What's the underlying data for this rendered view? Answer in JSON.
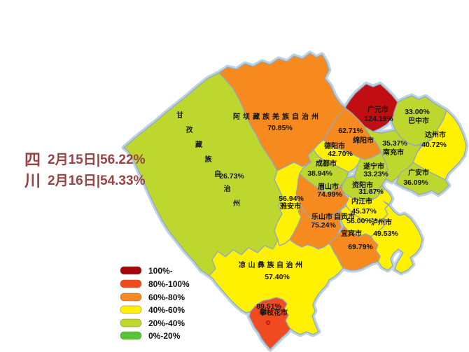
{
  "title": {
    "chars": [
      "四",
      "川"
    ],
    "line1": "2月15日|56.22%",
    "line2": "2月16日|54.33%",
    "text_color": "#964444"
  },
  "legend": {
    "items": [
      {
        "label": "100%-",
        "color": "#A8060E"
      },
      {
        "label": "80%-100%",
        "color": "#F04A21"
      },
      {
        "label": "60%-80%",
        "color": "#F68A1E"
      },
      {
        "label": "40%-60%",
        "color": "#FFF100"
      },
      {
        "label": "20%-40%",
        "color": "#BDD72F"
      },
      {
        "label": "0%-20%",
        "color": "#52C636"
      }
    ]
  },
  "map": {
    "border_halo_color": "#BDD3E2",
    "border_line_color": "#93A9BD",
    "regions": [
      {
        "name": "甘孜藏族自治州",
        "value": "26.73%",
        "color": "#BDD72F"
      },
      {
        "name": "阿坝藏族羌族自治州",
        "value": "70.85%",
        "color": "#F68A1E"
      },
      {
        "name": "广元市",
        "value": "124.19%",
        "color": "#C20E12"
      },
      {
        "name": "绵阳市",
        "value": "62.71%",
        "color": "#F68A1E"
      },
      {
        "name": "巴中市",
        "value": "33.00%",
        "color": "#BDD72F"
      },
      {
        "name": "达州市",
        "value": "40.72%",
        "color": "#FFF100"
      },
      {
        "name": "南充市",
        "value": "35.37%",
        "color": "#BDD72F"
      },
      {
        "name": "德阳市",
        "value": "42.70%",
        "color": "#FFF100"
      },
      {
        "name": "成都市",
        "value": "38.94%",
        "color": "#BDD72F"
      },
      {
        "name": "遂宁市",
        "value": "33.23%",
        "color": "#BDD72F"
      },
      {
        "name": "广安市",
        "value": "36.09%",
        "color": "#BDD72F"
      },
      {
        "name": "资阳市",
        "value": "31.87%",
        "color": "#BDD72F"
      },
      {
        "name": "内江市",
        "value": "45.37%",
        "color": "#FFF100"
      },
      {
        "name": "眉山市",
        "value": "74.99%",
        "color": "#F68A1E"
      },
      {
        "name": "雅安市",
        "value": "56.94%",
        "color": "#FFF100"
      },
      {
        "name": "乐山市",
        "value": "75.24%",
        "color": "#F68A1E"
      },
      {
        "name": "自贡市",
        "value": "56.00%",
        "color": "#FFF100"
      },
      {
        "name": "泸州市",
        "value": "49.53%",
        "color": "#FFF100"
      },
      {
        "name": "宜宾市",
        "value": "69.79%",
        "color": "#F68A1E"
      },
      {
        "name": "凉山彝族自治州",
        "value": "57.40%",
        "color": "#FFF100"
      },
      {
        "name": "攀枝花市",
        "value": "89.51%",
        "color": "#F04A21"
      }
    ]
  },
  "chart_data": {
    "type": "choropleth-map",
    "title": "四川 2月15日|56.22% 2月16日|54.33%",
    "categories": [
      "甘孜藏族自治州",
      "阿坝藏族羌族自治州",
      "广元市",
      "绵阳市",
      "巴中市",
      "达州市",
      "南充市",
      "德阳市",
      "成都市",
      "遂宁市",
      "广安市",
      "资阳市",
      "内江市",
      "眉山市",
      "雅安市",
      "乐山市",
      "自贡市",
      "泸州市",
      "宜宾市",
      "凉山彝族自治州",
      "攀枝花市"
    ],
    "values": [
      26.73,
      70.85,
      124.19,
      62.71,
      33.0,
      40.72,
      35.37,
      42.7,
      38.94,
      33.23,
      36.09,
      31.87,
      45.37,
      74.99,
      56.94,
      75.24,
      56.0,
      49.53,
      69.79,
      57.4,
      89.51
    ],
    "legend_buckets": [
      "100%-",
      "80%-100%",
      "60%-80%",
      "40%-60%",
      "20%-40%",
      "0%-20%"
    ],
    "legend_position": "bottom-left",
    "province_totals": [
      {
        "date": "2月15日",
        "value": 56.22
      },
      {
        "date": "2月16日",
        "value": 54.33
      }
    ]
  }
}
